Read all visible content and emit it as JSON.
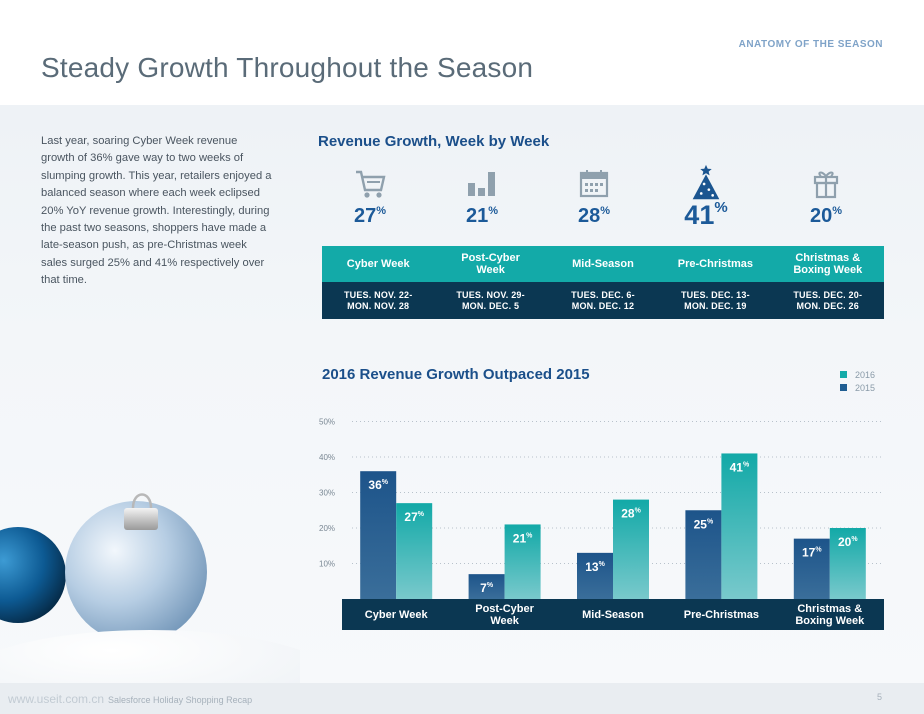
{
  "header": {
    "section_label": "ANATOMY OF THE SEASON",
    "title": "Steady Growth Throughout the Season"
  },
  "intro": "Last year, soaring Cyber Week revenue growth of 36% gave way to two weeks of slumping growth. This year, retailers enjoyed a balanced season where each week eclipsed 20% YoY revenue growth. Interestingly, during the past two seasons, shoppers have made a late-season push, as pre-Christmas week sales surged 25% and 41% respectively over that time.",
  "weekly": {
    "title": "Revenue Growth, Week by Week",
    "weeks": [
      {
        "icon": "shopping-cart-icon",
        "value": "27",
        "unit": "%",
        "name": "Cyber Week",
        "dates_line1": "TUES. NOV. 22-",
        "dates_line2": "MON. NOV. 28"
      },
      {
        "icon": "bar-chart-icon",
        "value": "21",
        "unit": "%",
        "name": "Post-Cyber Week",
        "dates_line1": "TUES. NOV. 29-",
        "dates_line2": "MON. DEC. 5"
      },
      {
        "icon": "calendar-icon",
        "value": "28",
        "unit": "%",
        "name": "Mid-Season",
        "dates_line1": "TUES. DEC. 6-",
        "dates_line2": "MON. DEC. 12"
      },
      {
        "icon": "christmas-tree-icon",
        "value": "41",
        "unit": "%",
        "name": "Pre-Christmas",
        "dates_line1": "TUES. DEC. 13-",
        "dates_line2": "MON. DEC. 19"
      },
      {
        "icon": "gift-icon",
        "value": "20",
        "unit": "%",
        "name": "Christmas & Boxing Week",
        "dates_line1": "TUES. DEC. 20-",
        "dates_line2": "MON. DEC. 26"
      }
    ]
  },
  "chart_data": {
    "type": "bar",
    "title": "2016 Revenue Growth Outpaced 2015",
    "categories": [
      "Cyber Week",
      "Post-Cyber Week",
      "Mid-Season",
      "Pre-Christmas",
      "Christmas & Boxing Week"
    ],
    "series": [
      {
        "name": "2015",
        "values": [
          36,
          7,
          13,
          25,
          17
        ],
        "color": "#1f5d92"
      },
      {
        "name": "2016",
        "values": [
          27,
          21,
          28,
          41,
          20
        ],
        "color": "#13aaa8"
      }
    ],
    "y_ticks": [
      "50%",
      "40%",
      "30%",
      "20%",
      "10%"
    ],
    "ylim": [
      0,
      50
    ],
    "grid": true,
    "legend": "top-right",
    "value_unit": "%"
  },
  "footer": {
    "watermark": "www.useit.com.cn",
    "doc_title": "Salesforce Holiday Shopping Recap",
    "page_number": "5"
  }
}
